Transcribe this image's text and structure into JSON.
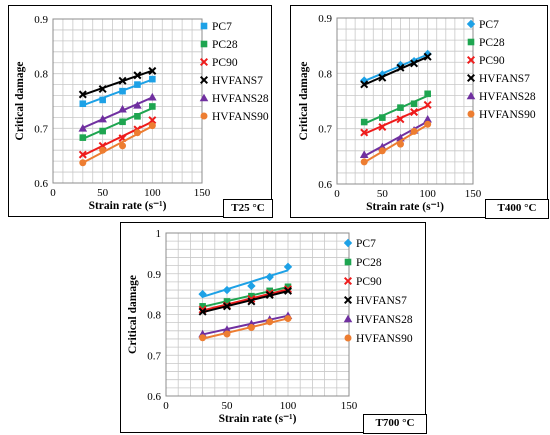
{
  "chart_data": [
    {
      "type": "scatter",
      "temp_label": "T25 °C",
      "xlabel": "Strain rate (s⁻¹)",
      "ylabel": "Critical damage",
      "xlim": [
        0,
        150
      ],
      "ylim": [
        0.6,
        0.9
      ],
      "xticks": [
        "0",
        "50",
        "100",
        "150"
      ],
      "yticks": [
        "0.6",
        "0.7",
        "0.8",
        "0.9"
      ],
      "legend_position": "right",
      "grid": true,
      "trendlines": true,
      "x": [
        30,
        50,
        70,
        85,
        100
      ],
      "series": [
        {
          "name": "PC7",
          "color": "#1da1e6",
          "marker": "square",
          "values": [
            0.745,
            0.752,
            0.768,
            0.78,
            0.79
          ]
        },
        {
          "name": "PC28",
          "color": "#1ea550",
          "marker": "square",
          "values": [
            0.683,
            0.695,
            0.712,
            0.722,
            0.74
          ]
        },
        {
          "name": "PC90",
          "color": "#ee1c1c",
          "marker": "x",
          "values": [
            0.652,
            0.668,
            0.682,
            0.698,
            0.715
          ]
        },
        {
          "name": "HVFANS7",
          "color": "#000000",
          "marker": "x",
          "values": [
            0.762,
            0.772,
            0.787,
            0.797,
            0.805
          ]
        },
        {
          "name": "HVFANS28",
          "color": "#7030a0",
          "marker": "triangle",
          "values": [
            0.7,
            0.717,
            0.735,
            0.742,
            0.757
          ]
        },
        {
          "name": "HVFANS90",
          "color": "#ed7d31",
          "marker": "circle",
          "values": [
            0.637,
            0.66,
            0.668,
            0.692,
            0.705
          ]
        }
      ]
    },
    {
      "type": "scatter",
      "temp_label": "T400 °C",
      "xlabel": "Strain rate (s⁻¹)",
      "ylabel": "Critical damage",
      "xlim": [
        0,
        150
      ],
      "ylim": [
        0.6,
        0.9
      ],
      "xticks": [
        "0",
        "50",
        "100",
        "150"
      ],
      "yticks": [
        "0.6",
        "0.7",
        "0.8",
        "0.9"
      ],
      "legend_position": "right",
      "grid": true,
      "trendlines": true,
      "x": [
        30,
        50,
        70,
        85,
        100
      ],
      "series": [
        {
          "name": "PC7",
          "color": "#1da1e6",
          "marker": "diamond",
          "values": [
            0.787,
            0.798,
            0.815,
            0.822,
            0.835
          ]
        },
        {
          "name": "PC28",
          "color": "#1ea550",
          "marker": "square",
          "values": [
            0.712,
            0.72,
            0.738,
            0.745,
            0.763
          ]
        },
        {
          "name": "PC90",
          "color": "#ee1c1c",
          "marker": "x",
          "values": [
            0.693,
            0.703,
            0.717,
            0.73,
            0.743
          ]
        },
        {
          "name": "HVFANS7",
          "color": "#000000",
          "marker": "x",
          "values": [
            0.78,
            0.792,
            0.81,
            0.818,
            0.83
          ]
        },
        {
          "name": "HVFANS28",
          "color": "#7030a0",
          "marker": "triangle",
          "values": [
            0.653,
            0.667,
            0.683,
            0.697,
            0.717
          ]
        },
        {
          "name": "HVFANS90",
          "color": "#ed7d31",
          "marker": "circle",
          "values": [
            0.64,
            0.66,
            0.672,
            0.695,
            0.708
          ]
        }
      ]
    },
    {
      "type": "scatter",
      "temp_label": "T700 °C",
      "xlabel": "Strain rate (s⁻¹)",
      "ylabel": "Critical damage",
      "xlim": [
        0,
        150
      ],
      "ylim": [
        0.6,
        1.0
      ],
      "xticks": [
        "0",
        "50",
        "100",
        "150"
      ],
      "yticks": [
        "0.6",
        "0.7",
        "0.8",
        "0.9",
        "1"
      ],
      "legend_position": "right",
      "grid": true,
      "trendlines": true,
      "x": [
        30,
        50,
        70,
        85,
        100
      ],
      "series": [
        {
          "name": "PC7",
          "color": "#1da1e6",
          "marker": "diamond",
          "values": [
            0.85,
            0.86,
            0.87,
            0.892,
            0.917
          ]
        },
        {
          "name": "PC28",
          "color": "#1ea550",
          "marker": "square",
          "values": [
            0.82,
            0.832,
            0.845,
            0.858,
            0.868
          ]
        },
        {
          "name": "PC90",
          "color": "#ee1c1c",
          "marker": "x",
          "values": [
            0.812,
            0.822,
            0.838,
            0.852,
            0.862
          ]
        },
        {
          "name": "HVFANS7",
          "color": "#000000",
          "marker": "x",
          "values": [
            0.807,
            0.82,
            0.832,
            0.848,
            0.858
          ]
        },
        {
          "name": "HVFANS28",
          "color": "#7030a0",
          "marker": "triangle",
          "values": [
            0.752,
            0.763,
            0.777,
            0.788,
            0.797
          ]
        },
        {
          "name": "HVFANS90",
          "color": "#ed7d31",
          "marker": "circle",
          "values": [
            0.743,
            0.752,
            0.768,
            0.782,
            0.79
          ]
        }
      ]
    }
  ]
}
